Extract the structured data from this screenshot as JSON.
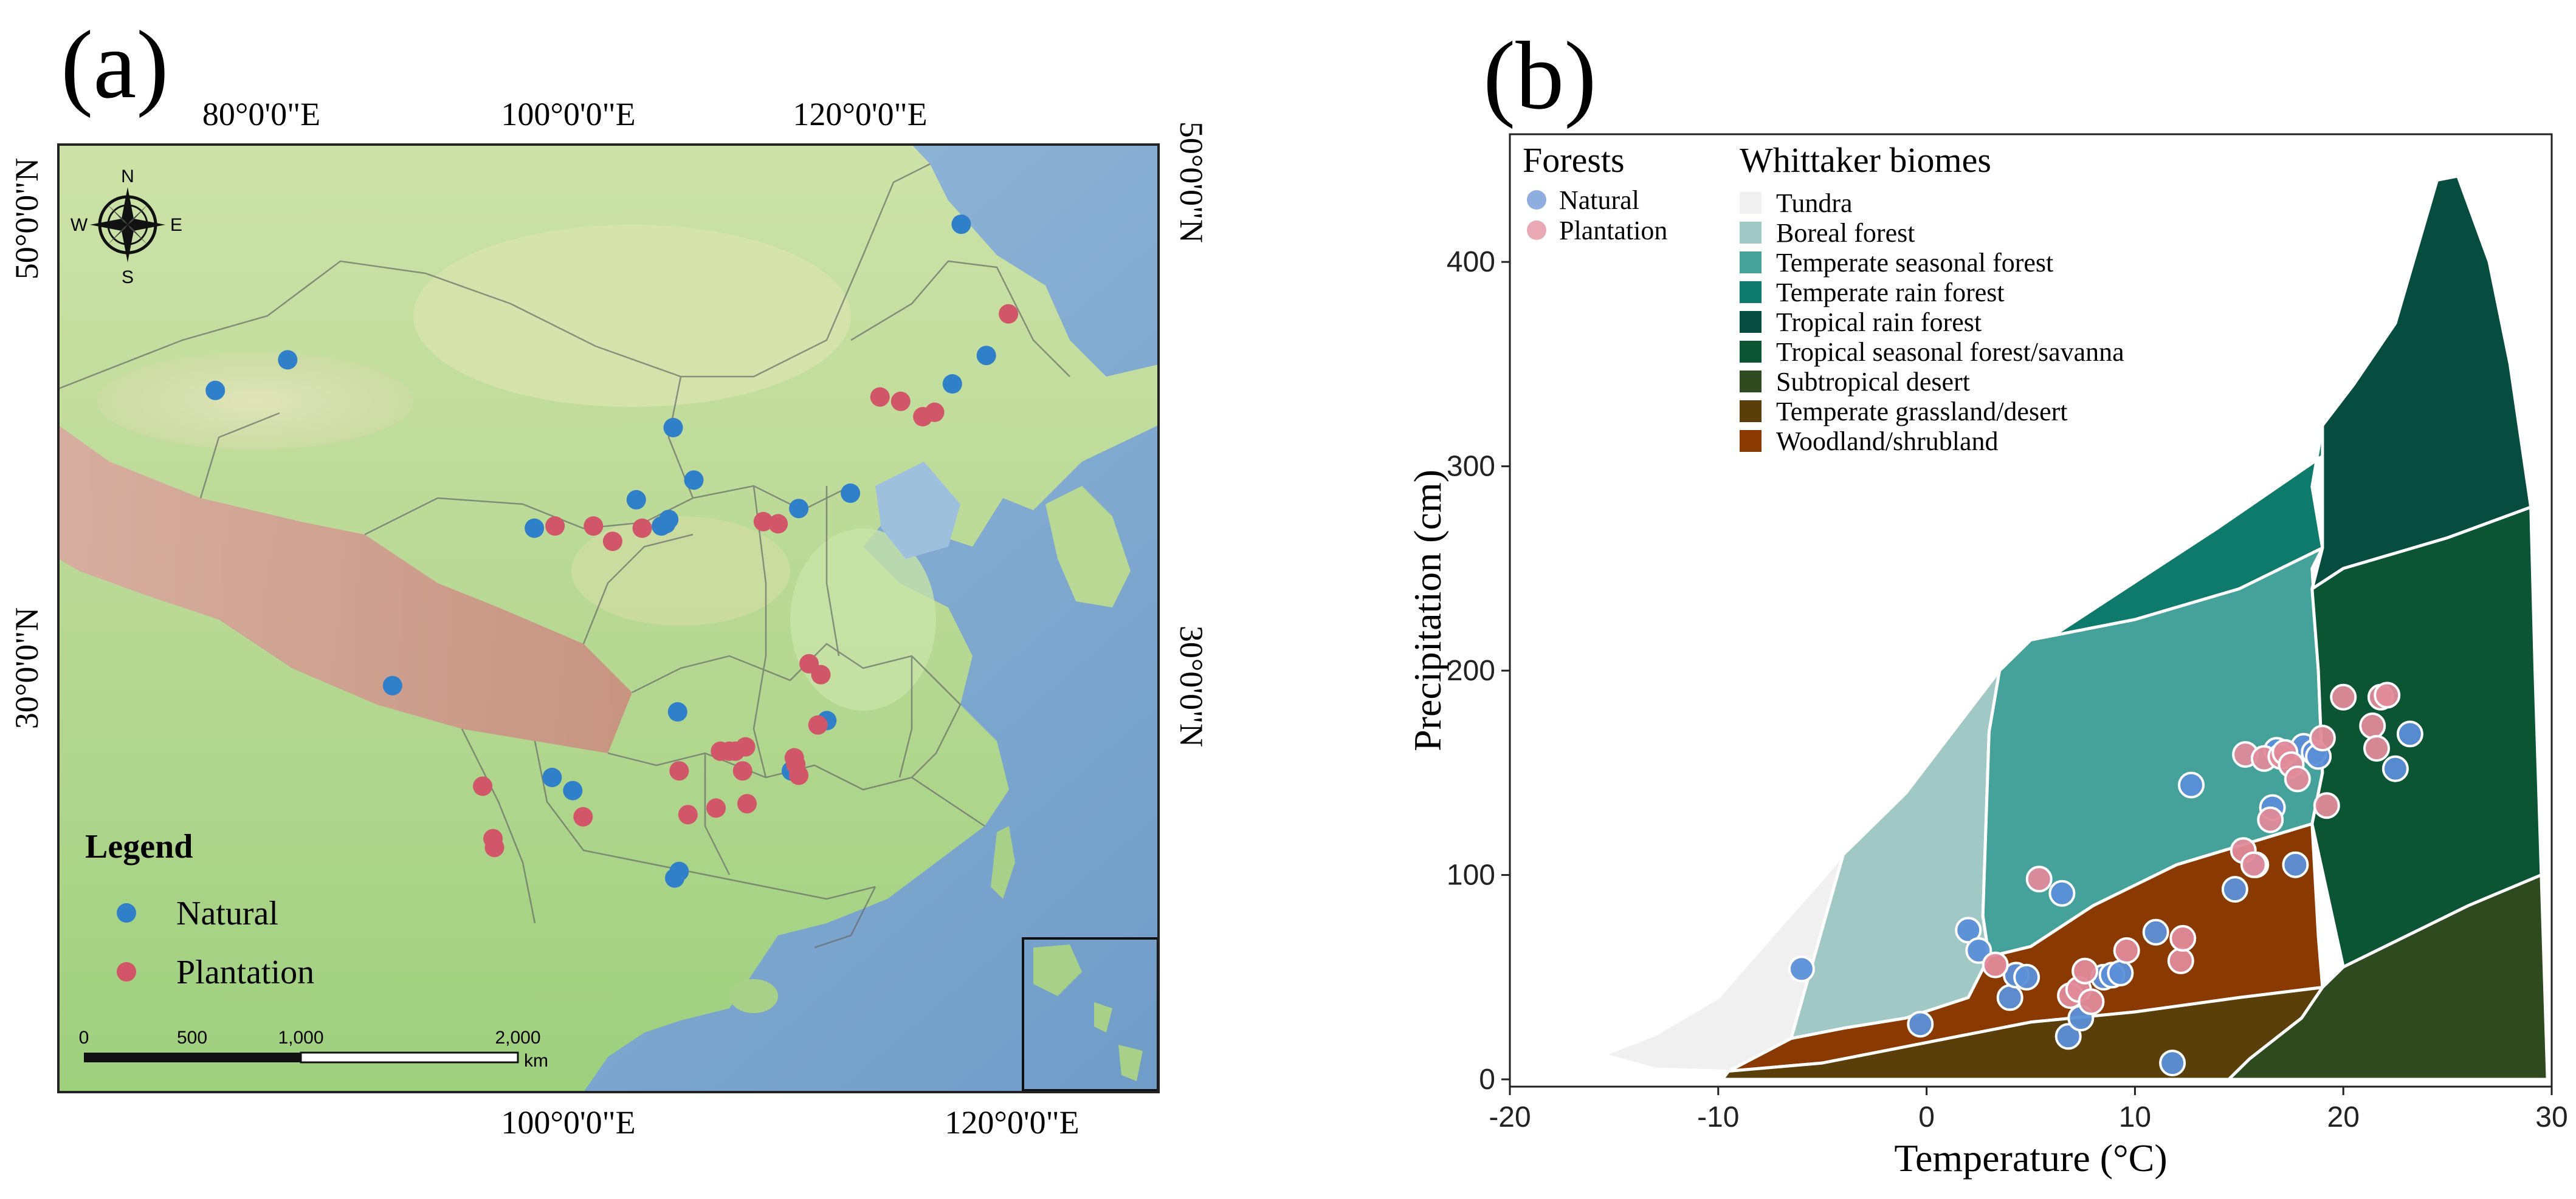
{
  "panel_a": {
    "label": "(a)",
    "lon_labels_top": [
      "80°0'0\"E",
      "100°0'0\"E",
      "120°0'0\"E"
    ],
    "lon_labels_bottom": [
      "100°0'0\"E",
      "120°0'0\"E"
    ],
    "lat_labels_left": [
      "50°0'0\"N",
      "30°0'0\"N"
    ],
    "lat_labels_right": [
      "50°0'0\"N",
      "30°0'0\"N"
    ],
    "compass": {
      "n": "N",
      "s": "S",
      "e": "E",
      "w": "W"
    },
    "legend": {
      "title": "Legend",
      "natural": "Natural",
      "plantation": "Plantation"
    },
    "scale": {
      "ticks": [
        "0",
        "500",
        "1,000",
        "2,000"
      ],
      "unit": "km"
    },
    "colors": {
      "natural": "#2f80c8",
      "plantation": "#d1566a"
    },
    "sites_natural": [
      {
        "lon": 126.6,
        "lat": 50.3
      },
      {
        "lon": 76.1,
        "lat": 42.7
      },
      {
        "lon": 81.0,
        "lat": 44.1
      },
      {
        "lon": 128.3,
        "lat": 44.3
      },
      {
        "lon": 126.0,
        "lat": 43.0
      },
      {
        "lon": 107.1,
        "lat": 41.0
      },
      {
        "lon": 108.5,
        "lat": 38.6
      },
      {
        "lon": 104.6,
        "lat": 37.7
      },
      {
        "lon": 106.8,
        "lat": 36.8
      },
      {
        "lon": 106.6,
        "lat": 36.6
      },
      {
        "lon": 106.3,
        "lat": 36.5
      },
      {
        "lon": 115.6,
        "lat": 37.3
      },
      {
        "lon": 119.1,
        "lat": 38.0
      },
      {
        "lon": 97.7,
        "lat": 36.4
      },
      {
        "lon": 88.1,
        "lat": 29.2
      },
      {
        "lon": 117.5,
        "lat": 27.6
      },
      {
        "lon": 107.4,
        "lat": 28.0
      },
      {
        "lon": 115.3,
        "lat": 25.4
      },
      {
        "lon": 115.1,
        "lat": 25.3
      },
      {
        "lon": 98.9,
        "lat": 25.0
      },
      {
        "lon": 100.3,
        "lat": 24.4
      },
      {
        "lon": 107.5,
        "lat": 20.7
      },
      {
        "lon": 107.2,
        "lat": 20.4
      }
    ],
    "sites_plantation": [
      {
        "lon": 129.8,
        "lat": 46.2
      },
      {
        "lon": 121.1,
        "lat": 42.4
      },
      {
        "lon": 122.5,
        "lat": 42.2
      },
      {
        "lon": 124.0,
        "lat": 41.5
      },
      {
        "lon": 124.8,
        "lat": 41.7
      },
      {
        "lon": 99.1,
        "lat": 36.5
      },
      {
        "lon": 101.7,
        "lat": 36.5
      },
      {
        "lon": 103.0,
        "lat": 35.8
      },
      {
        "lon": 105.0,
        "lat": 36.4
      },
      {
        "lon": 113.2,
        "lat": 36.7
      },
      {
        "lon": 114.2,
        "lat": 36.6
      },
      {
        "lon": 116.3,
        "lat": 30.2
      },
      {
        "lon": 117.1,
        "lat": 29.7
      },
      {
        "lon": 116.9,
        "lat": 27.4
      },
      {
        "lon": 107.5,
        "lat": 25.3
      },
      {
        "lon": 110.3,
        "lat": 26.2
      },
      {
        "lon": 110.9,
        "lat": 26.2
      },
      {
        "lon": 111.3,
        "lat": 26.2
      },
      {
        "lon": 112.0,
        "lat": 26.4
      },
      {
        "lon": 111.8,
        "lat": 25.3
      },
      {
        "lon": 115.3,
        "lat": 25.9
      },
      {
        "lon": 115.4,
        "lat": 25.6
      },
      {
        "lon": 115.6,
        "lat": 25.1
      },
      {
        "lon": 94.2,
        "lat": 24.6
      },
      {
        "lon": 101.0,
        "lat": 23.2
      },
      {
        "lon": 108.1,
        "lat": 23.3
      },
      {
        "lon": 110.0,
        "lat": 23.6
      },
      {
        "lon": 112.1,
        "lat": 23.8
      },
      {
        "lon": 94.9,
        "lat": 22.2
      },
      {
        "lon": 95.0,
        "lat": 21.8
      }
    ]
  },
  "chart_data": {
    "type": "scatter",
    "panel_label": "(b)",
    "xlabel": "Temperature (°C)",
    "ylabel": "Precipitation (cm)",
    "xlim": [
      -20,
      30
    ],
    "ylim": [
      0,
      450
    ],
    "xticks": [
      -20,
      -10,
      0,
      10,
      20,
      30
    ],
    "yticks": [
      0,
      100,
      200,
      300,
      400
    ],
    "grid": false,
    "legend_forests_title": "Forests",
    "legend_biomes_title": "Whittaker biomes",
    "biomes": [
      {
        "name": "Tundra",
        "color": "#f0f0f0"
      },
      {
        "name": "Boreal forest",
        "color": "#a0c8c4"
      },
      {
        "name": "Temperate seasonal forest",
        "color": "#45a29a"
      },
      {
        "name": "Temperate rain forest",
        "color": "#0d7a6c"
      },
      {
        "name": "Tropical rain forest",
        "color": "#064d40"
      },
      {
        "name": "Tropical seasonal forest/savanna",
        "color": "#0b5535"
      },
      {
        "name": "Subtropical desert",
        "color": "#2e4a1e"
      },
      {
        "name": "Temperate grassland/desert",
        "color": "#5a3f0a"
      },
      {
        "name": "Woodland/shrubland",
        "color": "#8a3a00"
      }
    ],
    "series": [
      {
        "name": "Natural",
        "color": "#5b8fd8",
        "x": [
          -6.0,
          -0.3,
          2.0,
          2.5,
          4.0,
          4.3,
          4.8,
          6.5,
          6.8,
          7.4,
          8.5,
          8.9,
          9.3,
          11.0,
          11.8,
          12.7,
          14.8,
          15.8,
          16.6,
          16.8,
          17.7,
          18.1,
          18.6,
          18.8,
          22.5,
          23.2
        ],
        "y": [
          54,
          27,
          73,
          63,
          40,
          51,
          50,
          91,
          21,
          30,
          50,
          51,
          52,
          72,
          8,
          144,
          93,
          105,
          133,
          161,
          105,
          163,
          160,
          158,
          152,
          169
        ]
      },
      {
        "name": "Plantation",
        "color": "#e08a9a",
        "x": [
          3.3,
          5.4,
          6.9,
          7.3,
          7.6,
          7.9,
          9.6,
          12.2,
          12.3,
          15.2,
          15.3,
          15.7,
          16.2,
          16.5,
          17.0,
          17.2,
          17.5,
          17.8,
          19.0,
          19.2,
          20.0,
          21.4,
          21.6,
          21.8,
          22.1
        ],
        "y": [
          56,
          98,
          41,
          44,
          53,
          38,
          63,
          58,
          69,
          112,
          159,
          105,
          157,
          127,
          158,
          160,
          154,
          147,
          167,
          134,
          187,
          173,
          162,
          187,
          188
        ]
      }
    ]
  }
}
